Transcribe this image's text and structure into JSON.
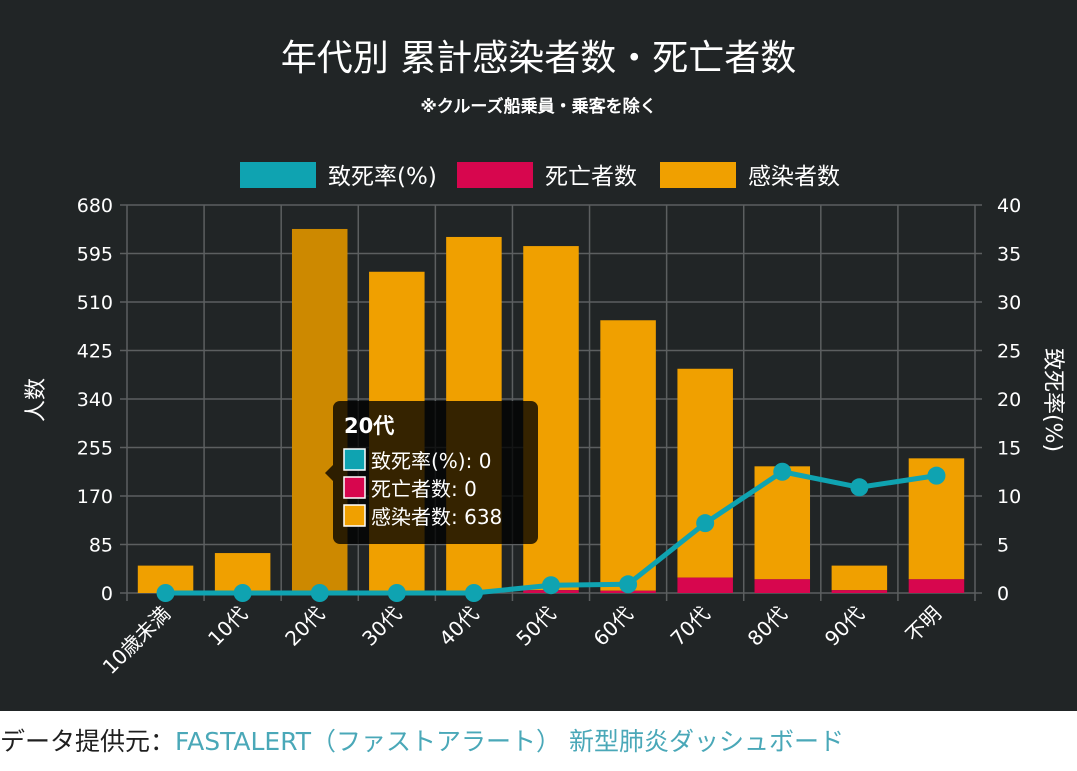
{
  "chart_data": {
    "type": "bar",
    "title": "年代別 累計感染者数・死亡者数",
    "subtitle": "※クルーズ船乗員・乗客を除く",
    "categories": [
      "10歳未満",
      "10代",
      "20代",
      "30代",
      "40代",
      "50代",
      "60代",
      "70代",
      "80代",
      "90代",
      "不明"
    ],
    "series": [
      {
        "name": "致死率(%)",
        "kind": "line",
        "axis": "right",
        "color": "#0fa3b1",
        "values": [
          0,
          0,
          0,
          0,
          0,
          0.8,
          0.9,
          7.2,
          12.5,
          10.9,
          12.1
        ]
      },
      {
        "name": "死亡者数",
        "kind": "bar",
        "axis": "left",
        "color": "#d7064e",
        "values": [
          0,
          0,
          0,
          0,
          2,
          5,
          4,
          27,
          24,
          5,
          24
        ]
      },
      {
        "name": "感染者数",
        "kind": "bar",
        "axis": "left",
        "color": "#f0a000",
        "values": [
          48,
          70,
          638,
          563,
          624,
          608,
          478,
          393,
          222,
          48,
          236
        ]
      }
    ],
    "ylabel": "人数",
    "y2label": "致死率(%)",
    "ylim": [
      0,
      680
    ],
    "y2lim": [
      0,
      40
    ],
    "yticks": [
      "680",
      "595",
      "510",
      "425",
      "340",
      "255",
      "170",
      "85",
      "0"
    ],
    "y2ticks": [
      "40",
      "35",
      "30",
      "25",
      "20",
      "15",
      "10",
      "5",
      "0"
    ],
    "grid": true,
    "legend_position": "top",
    "tooltip": {
      "category": "20代",
      "title": "20代",
      "lines": [
        "致死率(%): 0",
        "死亡者数: 0",
        "感染者数: 638"
      ]
    },
    "colors": {
      "background": "#212526",
      "grid": "#5c5f60",
      "text": "#ffffff",
      "highlight": "#cd8900"
    }
  },
  "credit": {
    "label": "データ提供元：",
    "link": "FASTALERT（ファストアラート） 新型肺炎ダッシュボード"
  }
}
